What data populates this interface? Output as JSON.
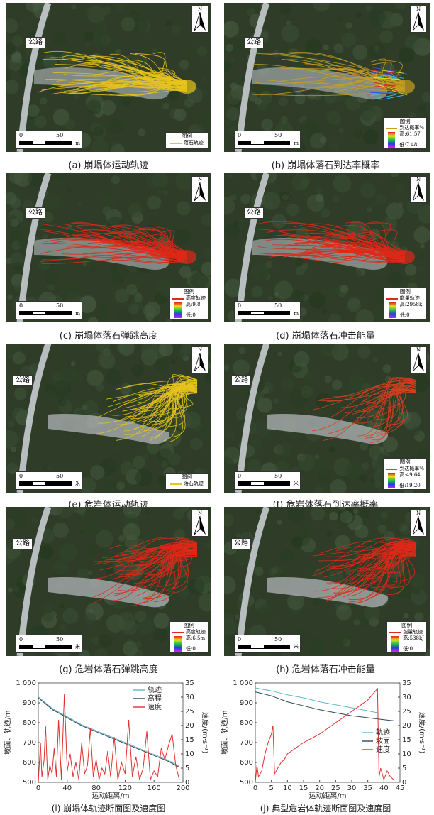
{
  "panels": [
    {
      "id": "a",
      "road": "公路",
      "scale_0": "0",
      "scale_50": "50",
      "scale_unit": "m",
      "legend_title": "图例",
      "legend_items": [
        "落石轨迹"
      ],
      "legend_type": "line",
      "caption": "(a) 崩塌体运动轨迹",
      "track_color": "#e8c41c"
    },
    {
      "id": "b",
      "road": "公路",
      "scale_0": "0",
      "scale_50": "50",
      "scale_unit": "m",
      "legend_title": "图例",
      "legend_items": [
        "到达概率%",
        "高:61.57",
        "低:7.48"
      ],
      "legend_type": "ramp",
      "caption": "(b) 崩塌体落石到达率概率",
      "track_color": "#c8a020"
    },
    {
      "id": "c",
      "road": "公路",
      "scale_0": "0",
      "scale_50": "50",
      "scale_unit": "m",
      "legend_title": "图例",
      "legend_items": [
        "高度轨迹",
        "高:9.8",
        "低:0"
      ],
      "legend_type": "ramp",
      "caption": "(c) 崩塌体落石弹跳高度",
      "track_color": "#e02818"
    },
    {
      "id": "d",
      "road": "公路",
      "scale_0": "0",
      "scale_50": "50",
      "scale_unit": "m",
      "legend_title": "图例",
      "legend_items": [
        "能量轨迹",
        "高:2958kJ",
        "低:0"
      ],
      "legend_type": "ramp",
      "caption": "(d) 崩塌体落石冲击能量",
      "track_color": "#e02818"
    },
    {
      "id": "e",
      "road": "公路",
      "scale_0": "0",
      "scale_50": "50",
      "scale_unit": "米",
      "legend_title": "图例",
      "legend_items": [
        "落石轨迹"
      ],
      "legend_type": "line",
      "caption": "(e) 危岩体运动轨迹",
      "track_color": "#e8c41c"
    },
    {
      "id": "f",
      "road": "公路",
      "scale_0": "0",
      "scale_50": "50",
      "scale_unit": "米",
      "legend_title": "图例",
      "legend_items": [
        "到达概率%",
        "高:49.64",
        "低:19.20"
      ],
      "legend_type": "ramp",
      "caption": "(f) 危岩体落石到达率概率",
      "track_color": "#d84020"
    },
    {
      "id": "g",
      "road": "公路",
      "scale_0": "0",
      "scale_50": "50",
      "scale_unit": "米",
      "legend_title": "图例",
      "legend_items": [
        "高度轨迹",
        "高:6.5m",
        "低:0"
      ],
      "legend_type": "ramp",
      "caption": "(g) 危岩体落石弹跳高度",
      "track_color": "#e02818"
    },
    {
      "id": "h",
      "road": "公路",
      "scale_0": "0",
      "scale_50": "50",
      "scale_unit": "米",
      "legend_title": "图例",
      "legend_items": [
        "能量轨迹",
        "高:538kJ",
        "低:0"
      ],
      "legend_type": "ramp",
      "caption": "(h) 危岩体落石冲击能量",
      "track_color": "#e02818"
    }
  ],
  "colors": {
    "vegetation": "#2f3d28",
    "road": "#c8ccd0",
    "deposit": "#b8bcc0",
    "track_yellow": "#e8c41c",
    "track_red": "#e02818",
    "profile_track": "#5fb8c8",
    "profile_elev": "#2a4a5a",
    "profile_speed": "#e03030"
  },
  "chart_data": [
    {
      "type": "line",
      "caption": "(i) 崩塌体轨迹断面图及速度图",
      "xlabel": "运动距离/m",
      "ylabel": "坡面、轨迹/m",
      "y2label": "速度/(m·s⁻¹)",
      "xlim": [
        0,
        200
      ],
      "ylim": [
        500,
        1000
      ],
      "y2lim": [
        0,
        35
      ],
      "xticks": [
        "0",
        "40",
        "80",
        "120",
        "160",
        "200"
      ],
      "yticks": [
        "500",
        "600",
        "700",
        "800",
        "900",
        "1 000"
      ],
      "y2ticks": [
        "0",
        "5",
        "10",
        "15",
        "20",
        "25",
        "30",
        "35"
      ],
      "legend": [
        "轨迹",
        "高程",
        "速度"
      ],
      "series": [
        {
          "name": "轨迹",
          "x": [
            0,
            10,
            20,
            40,
            60,
            80,
            100,
            120,
            140,
            160,
            180,
            195
          ],
          "values": [
            930,
            900,
            870,
            830,
            790,
            760,
            730,
            700,
            670,
            640,
            610,
            580
          ]
        },
        {
          "name": "高程",
          "x": [
            0,
            10,
            20,
            40,
            60,
            80,
            100,
            120,
            140,
            160,
            180,
            195
          ],
          "values": [
            925,
            895,
            865,
            825,
            785,
            755,
            725,
            695,
            665,
            635,
            605,
            575
          ]
        },
        {
          "name": "速度",
          "x": [
            0,
            3,
            5,
            8,
            10,
            13,
            16,
            19,
            22,
            25,
            28,
            32,
            36,
            40,
            44,
            48,
            52,
            56,
            60,
            64,
            68,
            72,
            76,
            80,
            84,
            88,
            92,
            96,
            100,
            105,
            110,
            115,
            120,
            125,
            130,
            135,
            140,
            145,
            150,
            155,
            160,
            165,
            170,
            175,
            180,
            185,
            190,
            195
          ],
          "values": [
            0,
            14,
            2,
            8,
            20,
            1,
            6,
            3,
            12,
            2,
            22,
            1,
            31,
            4,
            10,
            2,
            7,
            1,
            14,
            3,
            6,
            19,
            2,
            8,
            1,
            5,
            3,
            11,
            2,
            16,
            1,
            7,
            3,
            22,
            2,
            9,
            1,
            5,
            18,
            1,
            4,
            2,
            12,
            8,
            13,
            17,
            6,
            1
          ]
        }
      ]
    },
    {
      "type": "line",
      "caption": "(j) 典型危岩体轨迹断面图及速度图",
      "xlabel": "运动距离/m",
      "ylabel": "坡面、轨迹/m",
      "y2label": "速度/(m·s⁻¹)",
      "xlim": [
        0,
        45
      ],
      "ylim": [
        500,
        1000
      ],
      "y2lim": [
        0,
        35
      ],
      "xticks": [
        "0",
        "5",
        "10",
        "15",
        "20",
        "25",
        "30",
        "35",
        "40",
        "45"
      ],
      "yticks": [
        "500",
        "600",
        "700",
        "800",
        "900",
        "1 000"
      ],
      "y2ticks": [
        "0",
        "5",
        "10",
        "15",
        "20",
        "25",
        "30",
        "35"
      ],
      "legend": [
        "轨迹",
        "坡面",
        "速度"
      ],
      "series": [
        {
          "name": "轨迹",
          "x": [
            0,
            5,
            10,
            15,
            20,
            25,
            30,
            35,
            38
          ],
          "values": [
            975,
            960,
            940,
            925,
            905,
            890,
            875,
            860,
            850
          ]
        },
        {
          "name": "坡面",
          "x": [
            0,
            5,
            10,
            15,
            20,
            25,
            30,
            35,
            40,
            43
          ],
          "values": [
            955,
            935,
            905,
            885,
            865,
            850,
            835,
            825,
            815,
            810
          ]
        },
        {
          "name": "速度",
          "x": [
            0,
            0.5,
            1,
            2,
            3,
            4,
            5,
            5.5,
            6,
            7,
            8,
            9,
            10,
            15,
            20,
            25,
            30,
            35,
            38,
            38.5,
            39,
            40,
            41,
            42,
            43
          ],
          "values": [
            0,
            6,
            2,
            4,
            10,
            14,
            17,
            20,
            3,
            5,
            7,
            8,
            10,
            14,
            17,
            21,
            25,
            29,
            33,
            2,
            5,
            1,
            4,
            2,
            1
          ]
        }
      ]
    }
  ]
}
